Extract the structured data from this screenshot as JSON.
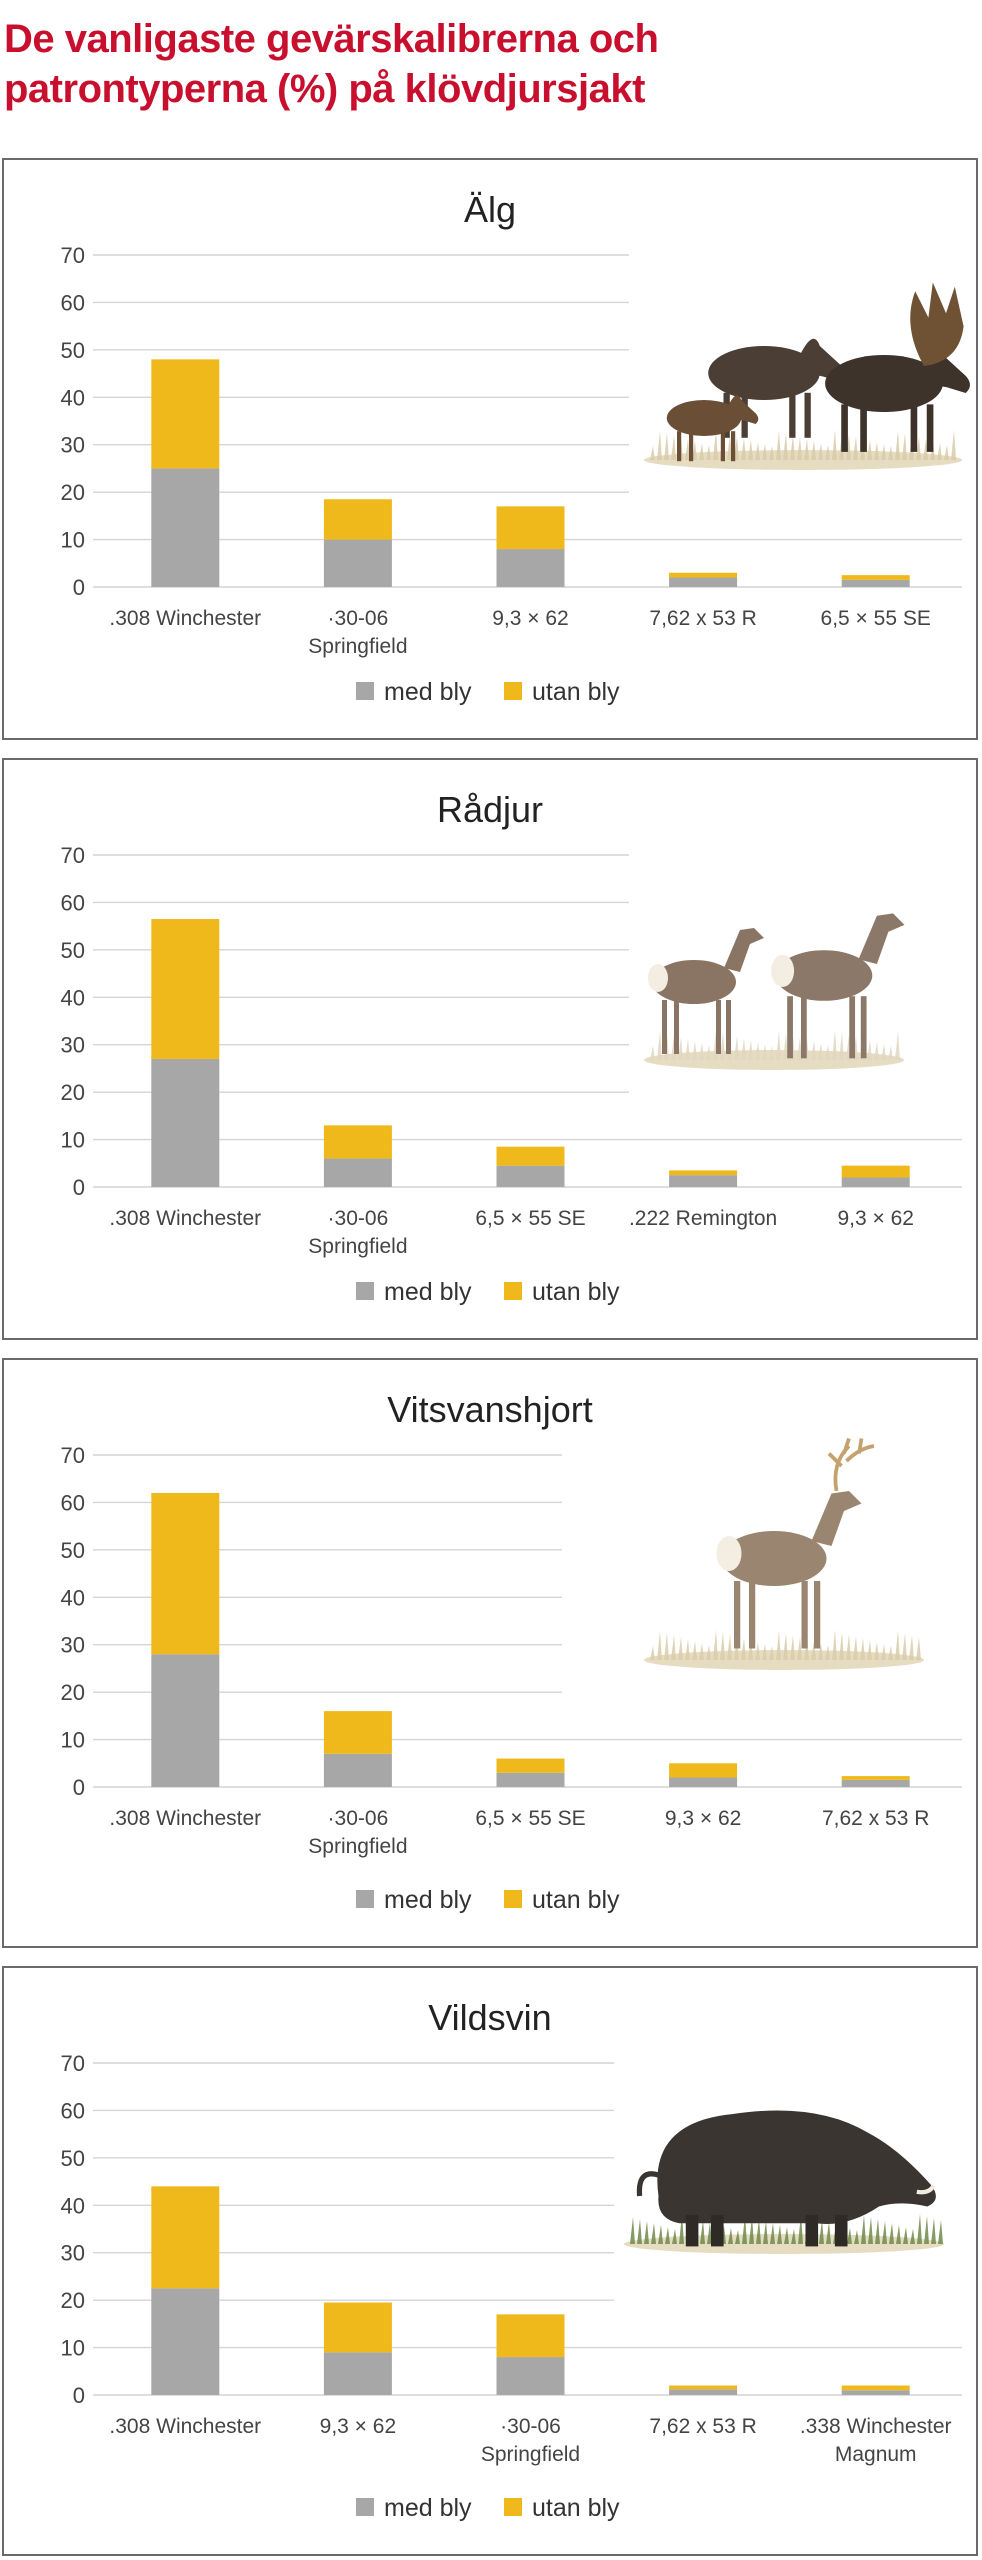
{
  "page": {
    "title_line1": "De vanligaste gevärskalibrerna och",
    "title_line2": "patrontyperna (%) på klövdjursjakt"
  },
  "legend": {
    "lead": "med bly",
    "unleaded": "utan bly"
  },
  "colors": {
    "lead": "#a7a7a7",
    "unleaded": "#efb91c",
    "title": "#c8102e"
  },
  "chart_data": [
    {
      "type": "bar",
      "stacked": true,
      "title": "Älg",
      "illustration": "moose-illustration",
      "ylim": [
        0,
        70
      ],
      "yticks": [
        0,
        10,
        20,
        30,
        40,
        50,
        60,
        70
      ],
      "grid": true,
      "legend_position": "bottom",
      "categories": [
        [
          ".308 Winchester"
        ],
        [
          "·30-06",
          "Springfield"
        ],
        [
          "9,3 × 62"
        ],
        [
          "7,62 x 53 R"
        ],
        [
          "6,5 × 55 SE"
        ]
      ],
      "series": [
        {
          "name": "med bly",
          "values": [
            25,
            10,
            8,
            2,
            1.5
          ]
        },
        {
          "name": "utan bly",
          "values": [
            23,
            8.5,
            9,
            1,
            1
          ]
        }
      ]
    },
    {
      "type": "bar",
      "stacked": true,
      "title": "Rådjur",
      "illustration": "roe-deer-illustration",
      "ylim": [
        0,
        70
      ],
      "yticks": [
        0,
        10,
        20,
        30,
        40,
        50,
        60,
        70
      ],
      "grid": true,
      "legend_position": "bottom",
      "categories": [
        [
          ".308 Winchester"
        ],
        [
          "·30-06",
          "Springfield"
        ],
        [
          "6,5 × 55 SE"
        ],
        [
          ".222 Remington"
        ],
        [
          "9,3 × 62"
        ]
      ],
      "series": [
        {
          "name": "med bly",
          "values": [
            27,
            6,
            4.5,
            2.5,
            2
          ]
        },
        {
          "name": "utan bly",
          "values": [
            29.5,
            7,
            4,
            1,
            2.5
          ]
        }
      ]
    },
    {
      "type": "bar",
      "stacked": true,
      "title": "Vitsvanshjort",
      "illustration": "white-tailed-deer-illustration",
      "ylim": [
        0,
        70
      ],
      "yticks": [
        0,
        10,
        20,
        30,
        40,
        50,
        60,
        70
      ],
      "grid": true,
      "legend_position": "bottom",
      "categories": [
        [
          ".308 Winchester"
        ],
        [
          "·30-06",
          "Springfield"
        ],
        [
          "6,5 × 55 SE"
        ],
        [
          "9,3 × 62"
        ],
        [
          "7,62 x 53 R"
        ]
      ],
      "series": [
        {
          "name": "med bly",
          "values": [
            28,
            7,
            3,
            2,
            1.5
          ]
        },
        {
          "name": "utan bly",
          "values": [
            34,
            9,
            3,
            3,
            0.8
          ]
        }
      ]
    },
    {
      "type": "bar",
      "stacked": true,
      "title": "Vildsvin",
      "illustration": "wild-boar-illustration",
      "ylim": [
        0,
        70
      ],
      "yticks": [
        0,
        10,
        20,
        30,
        40,
        50,
        60,
        70
      ],
      "grid": true,
      "legend_position": "bottom",
      "categories": [
        [
          ".308 Winchester"
        ],
        [
          "9,3 × 62"
        ],
        [
          "·30-06",
          "Springfield"
        ],
        [
          "7,62 x 53 R"
        ],
        [
          ".338 Winchester",
          "Magnum"
        ]
      ],
      "series": [
        {
          "name": "med bly",
          "values": [
            22.5,
            9,
            8,
            1.2,
            1
          ]
        },
        {
          "name": "utan bly",
          "values": [
            21.5,
            10.5,
            9,
            0.8,
            1
          ]
        }
      ]
    }
  ]
}
